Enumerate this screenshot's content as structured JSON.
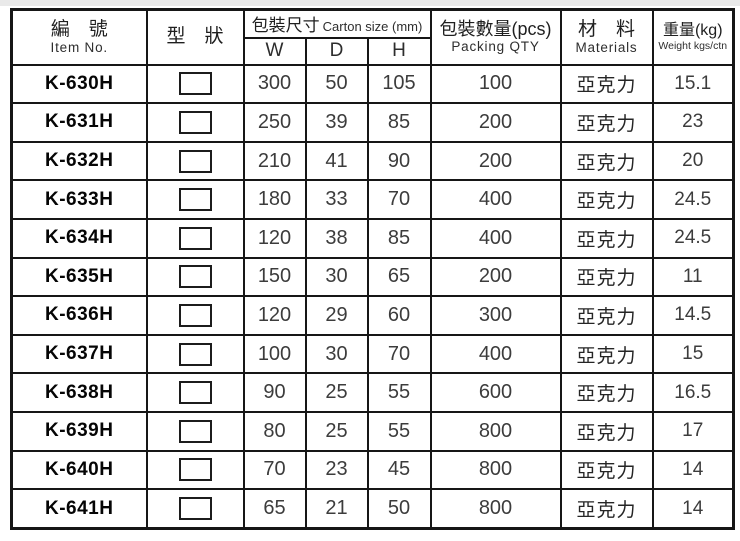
{
  "table": {
    "headers": {
      "item_no": {
        "zh": "編　號",
        "en": "Item No."
      },
      "shape": {
        "zh": "型　狀"
      },
      "carton": {
        "zh": "包裝尺寸",
        "en": "Carton size (mm)",
        "sub": [
          "W",
          "D",
          "H"
        ]
      },
      "qty": {
        "zh": "包裝數量(pcs)",
        "en": "Packing QTY"
      },
      "materials": {
        "zh": "材　料",
        "en": "Materials"
      },
      "weight": {
        "zh": "重量(kg)",
        "en": "Weight kgs/ctn"
      }
    },
    "shape_icon": "rectangle-outline",
    "colors": {
      "border": "#161616",
      "item_text": "#050505",
      "number_text": "#3c3c3c",
      "background": "#ffffff"
    },
    "rows": [
      {
        "item": "K-630H",
        "w": "300",
        "d": "50",
        "h": "105",
        "qty": "100",
        "material": "亞克力",
        "weight": "15.1"
      },
      {
        "item": "K-631H",
        "w": "250",
        "d": "39",
        "h": "85",
        "qty": "200",
        "material": "亞克力",
        "weight": "23"
      },
      {
        "item": "K-632H",
        "w": "210",
        "d": "41",
        "h": "90",
        "qty": "200",
        "material": "亞克力",
        "weight": "20"
      },
      {
        "item": "K-633H",
        "w": "180",
        "d": "33",
        "h": "70",
        "qty": "400",
        "material": "亞克力",
        "weight": "24.5"
      },
      {
        "item": "K-634H",
        "w": "120",
        "d": "38",
        "h": "85",
        "qty": "400",
        "material": "亞克力",
        "weight": "24.5"
      },
      {
        "item": "K-635H",
        "w": "150",
        "d": "30",
        "h": "65",
        "qty": "200",
        "material": "亞克力",
        "weight": "11"
      },
      {
        "item": "K-636H",
        "w": "120",
        "d": "29",
        "h": "60",
        "qty": "300",
        "material": "亞克力",
        "weight": "14.5"
      },
      {
        "item": "K-637H",
        "w": "100",
        "d": "30",
        "h": "70",
        "qty": "400",
        "material": "亞克力",
        "weight": "15"
      },
      {
        "item": "K-638H",
        "w": "90",
        "d": "25",
        "h": "55",
        "qty": "600",
        "material": "亞克力",
        "weight": "16.5"
      },
      {
        "item": "K-639H",
        "w": "80",
        "d": "25",
        "h": "55",
        "qty": "800",
        "material": "亞克力",
        "weight": "17"
      },
      {
        "item": "K-640H",
        "w": "70",
        "d": "23",
        "h": "45",
        "qty": "800",
        "material": "亞克力",
        "weight": "14"
      },
      {
        "item": "K-641H",
        "w": "65",
        "d": "21",
        "h": "50",
        "qty": "800",
        "material": "亞克力",
        "weight": "14"
      }
    ]
  }
}
